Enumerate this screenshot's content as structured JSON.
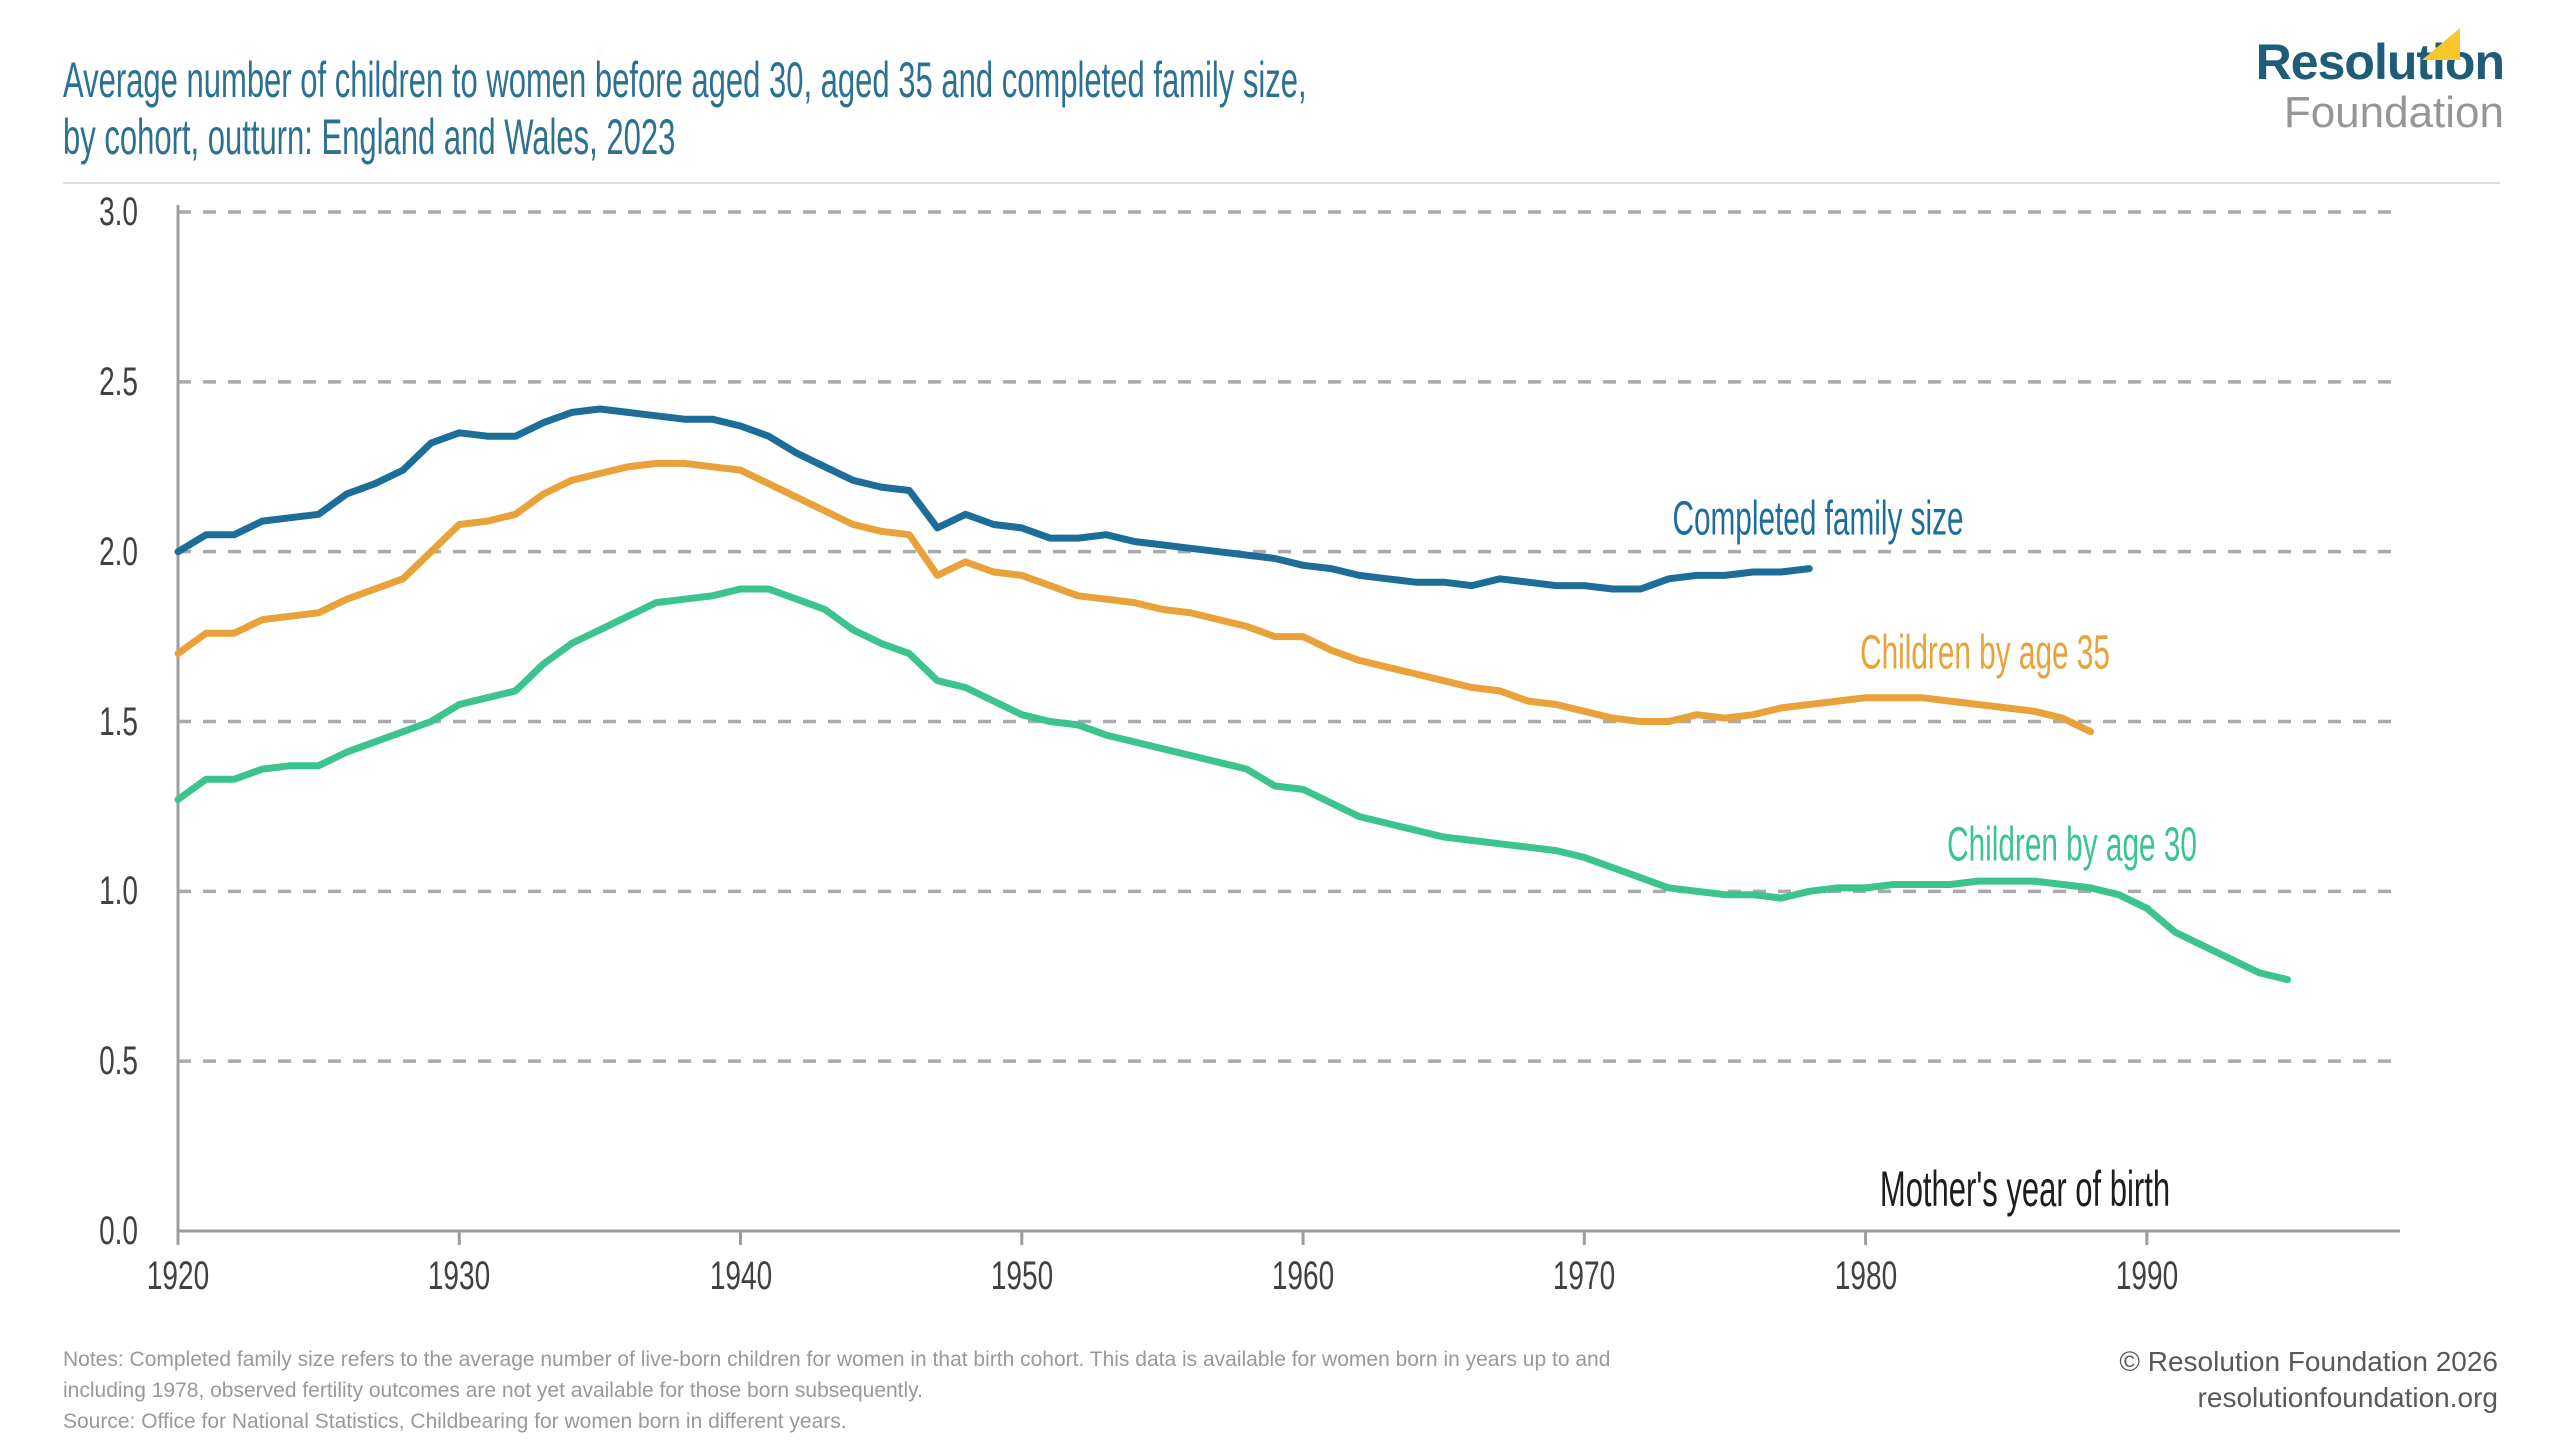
{
  "header": {
    "title_line1": "Average number of children to women before aged 30, aged 35 and completed family size,",
    "title_line2": "by cohort, outturn: England and Wales, 2023"
  },
  "logo": {
    "name": "Resolution",
    "subname": "Foundation",
    "flag_color": "#f9c62b",
    "name_color": "#1e5c78",
    "subname_color": "#949698"
  },
  "chart_data": {
    "type": "line",
    "title": "Average number of children to women before aged 30, aged 35 and completed family size, by cohort, outturn: England and Wales, 2023",
    "xlabel": "Mother's year of birth",
    "ylabel": "",
    "x_domain": [
      1920,
      1999
    ],
    "y_domain": [
      0,
      3
    ],
    "grid": "dashed-horizontal",
    "legend_position": "inline-labels-right",
    "axes": {
      "y_tick_values": [
        3.0,
        2.5,
        2.0,
        1.5,
        1.0,
        0.5,
        0.0
      ],
      "y_tick_labels": [
        "3.0",
        "2.5",
        "2.0",
        "1.5",
        "1.0",
        "0.5",
        "0.0"
      ],
      "x_tick_years": [
        1920,
        1930,
        1940,
        1950,
        1960,
        1970,
        1980,
        1990
      ]
    },
    "series": [
      {
        "name": "Completed family size",
        "color": "#1c6e99",
        "start_year": 1920,
        "end_year": 1978,
        "values": [
          2.0,
          2.05,
          2.05,
          2.09,
          2.1,
          2.11,
          2.17,
          2.2,
          2.24,
          2.32,
          2.35,
          2.34,
          2.34,
          2.38,
          2.41,
          2.42,
          2.41,
          2.4,
          2.39,
          2.39,
          2.37,
          2.34,
          2.29,
          2.25,
          2.21,
          2.19,
          2.18,
          2.07,
          2.11,
          2.08,
          2.07,
          2.04,
          2.04,
          2.05,
          2.03,
          2.02,
          2.01,
          2.0,
          1.99,
          1.98,
          1.96,
          1.95,
          1.93,
          1.92,
          1.91,
          1.91,
          1.9,
          1.92,
          1.91,
          1.9,
          1.9,
          1.89,
          1.89,
          1.92,
          1.93,
          1.93,
          1.94,
          1.94,
          1.95
        ]
      },
      {
        "name": "Children by age 35",
        "color": "#e9a23a",
        "start_year": 1920,
        "end_year": 1988,
        "values": [
          1.7,
          1.76,
          1.76,
          1.8,
          1.81,
          1.82,
          1.86,
          1.89,
          1.92,
          2.0,
          2.08,
          2.09,
          2.11,
          2.17,
          2.21,
          2.23,
          2.25,
          2.26,
          2.26,
          2.25,
          2.24,
          2.2,
          2.16,
          2.12,
          2.08,
          2.06,
          2.05,
          1.93,
          1.97,
          1.94,
          1.93,
          1.9,
          1.87,
          1.86,
          1.85,
          1.83,
          1.82,
          1.8,
          1.78,
          1.75,
          1.75,
          1.71,
          1.68,
          1.66,
          1.64,
          1.62,
          1.6,
          1.59,
          1.56,
          1.55,
          1.53,
          1.51,
          1.5,
          1.5,
          1.52,
          1.51,
          1.52,
          1.54,
          1.55,
          1.56,
          1.57,
          1.57,
          1.57,
          1.56,
          1.55,
          1.54,
          1.53,
          1.51,
          1.47
        ]
      },
      {
        "name": "Children by age 30",
        "color": "#3cc48e",
        "start_year": 1920,
        "end_year": 1995,
        "values": [
          1.27,
          1.33,
          1.33,
          1.36,
          1.37,
          1.37,
          1.41,
          1.44,
          1.47,
          1.5,
          1.55,
          1.57,
          1.59,
          1.67,
          1.73,
          1.77,
          1.81,
          1.85,
          1.86,
          1.87,
          1.89,
          1.89,
          1.86,
          1.83,
          1.77,
          1.73,
          1.7,
          1.62,
          1.6,
          1.56,
          1.52,
          1.5,
          1.49,
          1.46,
          1.44,
          1.42,
          1.4,
          1.38,
          1.36,
          1.31,
          1.3,
          1.26,
          1.22,
          1.2,
          1.18,
          1.16,
          1.15,
          1.14,
          1.13,
          1.12,
          1.1,
          1.07,
          1.04,
          1.01,
          1.0,
          0.99,
          0.99,
          0.98,
          1.0,
          1.01,
          1.01,
          1.02,
          1.02,
          1.02,
          1.03,
          1.03,
          1.03,
          1.02,
          1.01,
          0.99,
          0.95,
          0.88,
          0.84,
          0.8,
          0.76,
          0.74
        ]
      }
    ],
    "style": {
      "gridline_color": "#a8aaac",
      "axis_color": "#9b9da0",
      "tick_label_color": "#414042",
      "line_width": 7
    }
  },
  "notes": {
    "line1": "Notes: Completed family size refers to the average number of live-born children for women in that birth cohort. This data is available for women born in years up to and",
    "line2": "including 1978, observed fertility outcomes are not yet available for those born subsequently.",
    "line3": "Source: Office for National Statistics, Childbearing for women born in different years."
  },
  "footer": {
    "copyright": "© Resolution Foundation 2026",
    "website": "resolutionfoundation.org"
  }
}
